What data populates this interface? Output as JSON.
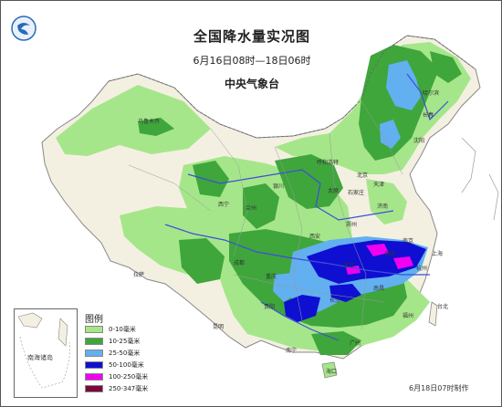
{
  "header": {
    "title": "全国降水量实况图",
    "time_range": "6月16日08时—18日06时",
    "issuer": "中央气象台"
  },
  "legend": {
    "title": "图例",
    "items": [
      {
        "label": "0-10毫米",
        "color": "#a6e68a"
      },
      {
        "label": "10-25毫米",
        "color": "#3fa63c"
      },
      {
        "label": "25-50毫米",
        "color": "#62b0f0"
      },
      {
        "label": "50-100毫米",
        "color": "#0f0fd2"
      },
      {
        "label": "100-250毫米",
        "color": "#f000f0"
      },
      {
        "label": "250-347毫米",
        "color": "#7a0a3c"
      }
    ]
  },
  "inset": {
    "label": "南海诸岛"
  },
  "footer": "6月18日07时制作",
  "cities": [
    "哈尔滨",
    "长春",
    "沈阳",
    "北京",
    "呼和浩特",
    "太原",
    "石家庄",
    "济南",
    "郑州",
    "西安",
    "兰州",
    "西宁",
    "银川",
    "乌鲁木齐",
    "拉萨",
    "成都",
    "重庆",
    "武汉",
    "合肥",
    "南京",
    "上海",
    "杭州",
    "长沙",
    "南昌",
    "福州",
    "贵阳",
    "昆明",
    "南宁",
    "广州",
    "海口",
    "台北",
    "天津"
  ],
  "icons": {
    "logo": "cma-logo-icon"
  }
}
